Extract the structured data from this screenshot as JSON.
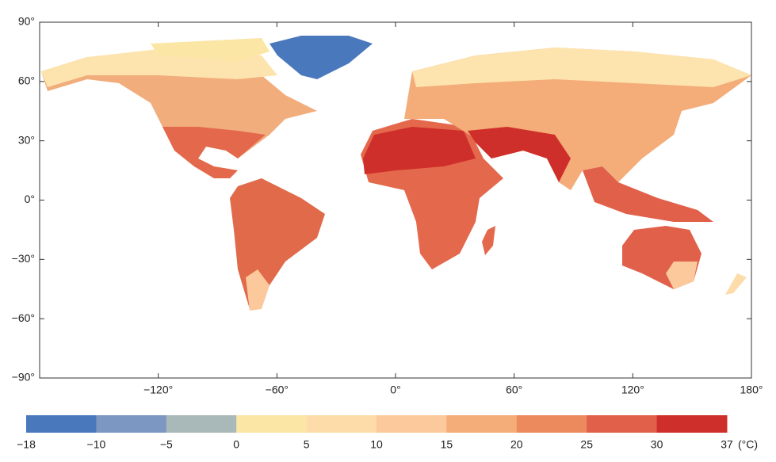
{
  "map": {
    "xlim": [
      -180,
      180
    ],
    "ylim": [
      -90,
      90
    ],
    "xticks": [
      {
        "value": -120,
        "label": "−120°"
      },
      {
        "value": -60,
        "label": "−60°"
      },
      {
        "value": 0,
        "label": "0°"
      },
      {
        "value": 60,
        "label": "60°"
      },
      {
        "value": 120,
        "label": "120°"
      },
      {
        "value": 180,
        "label": "180°"
      }
    ],
    "yticks": [
      {
        "value": 90,
        "label": "90°"
      },
      {
        "value": 60,
        "label": "60°"
      },
      {
        "value": 30,
        "label": "30°"
      },
      {
        "value": 0,
        "label": "0°"
      },
      {
        "value": -30,
        "label": "−30°"
      },
      {
        "value": -60,
        "label": "−60°"
      },
      {
        "value": -90,
        "label": "−90°"
      }
    ]
  },
  "colorbar": {
    "bounds": [
      {
        "value": -18,
        "label": "−18"
      },
      {
        "value": -10,
        "label": "−10"
      },
      {
        "value": -5,
        "label": "−5"
      },
      0,
      5,
      10,
      15,
      20,
      25,
      30,
      37
    ],
    "colors": [
      "#4a78bd",
      "#7b97c2",
      "#a9b9b9",
      "#fbe6a6",
      "#fddcaa",
      "#fbc99b",
      "#f4ac78",
      "#ec8a5e",
      "#e0604a",
      "#cf2f2a"
    ],
    "unit": "(°C)"
  }
}
